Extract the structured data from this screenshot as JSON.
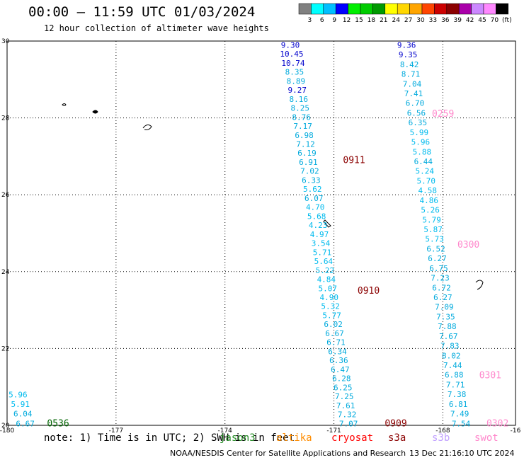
{
  "header": {
    "title": "00:00 – 11:59 UTC 01/03/2024",
    "subtitle": "12 hour collection of altimeter wave heights"
  },
  "legend_scale": {
    "colors": [
      "#808080",
      "#00ffff",
      "#00bfff",
      "#0000ff",
      "#00ee00",
      "#00cc00",
      "#009900",
      "#ffff00",
      "#ffd700",
      "#ffa500",
      "#ff4500",
      "#cc0000",
      "#8b0000",
      "#aa00aa",
      "#cc88ff",
      "#ff88ff",
      "#000000"
    ],
    "labels": [
      "3",
      "6",
      "9",
      "12",
      "15",
      "18",
      "21",
      "24",
      "27",
      "30",
      "33",
      "36",
      "39",
      "42",
      "45",
      "70",
      "(ft)"
    ]
  },
  "footer": {
    "note_prefix": "note: 1) Time is in UTC; 2) SWH is in feet",
    "missions": [
      {
        "name": "jason3",
        "color": "#228b22"
      },
      {
        "name": "altika",
        "color": "#ff8c00"
      },
      {
        "name": "cryosat",
        "color": "#ff0000"
      },
      {
        "name": "s3a",
        "color": "#8b0000"
      },
      {
        "name": "s3b",
        "color": "#c0a0ff"
      },
      {
        "name": "swot",
        "color": "#ff88cc"
      }
    ],
    "credit": "NOAA/NESDIS Center for Satellite Applications and Research",
    "generated": "13 Dec 21:16:10 UTC 2024"
  },
  "chart_data": {
    "type": "scatter",
    "xlim": [
      -180,
      -166
    ],
    "ylim": [
      20,
      30
    ],
    "x_ticks": [
      "-180",
      "-177",
      "-174",
      "-171",
      "-168",
      "-16"
    ],
    "y_ticks": [
      "30",
      "28",
      "26",
      "24",
      "22",
      "20"
    ],
    "grid": true,
    "tracks": [
      {
        "name": "s3a-west",
        "time_label": "0911",
        "time_label_color": "#8b0000",
        "values": [
          "9.30",
          "10.45",
          "10.74",
          "8.35",
          "8.89",
          "9.27",
          "8.16",
          "8.25",
          "8.76",
          "7.17",
          "6.98",
          "7.12",
          "6.19",
          "6.91",
          "7.02",
          "6.33",
          "5.62",
          "6.07",
          "4.70",
          "5.68",
          "4.23",
          "4.97",
          "3.54",
          "5.71",
          "5.64",
          "5.22",
          "4.84",
          "5.07",
          "4.90",
          "5.32",
          "5.77",
          "6.02",
          "6.67",
          "6.71",
          "6.34",
          "6.36",
          "6.47",
          "6.28",
          "6.25",
          "7.25",
          "7.61",
          "7.32",
          "7.07"
        ],
        "lon_start": -172.2,
        "lat_start": 29.9,
        "lon_end": -170.6,
        "lat_end": 20.05
      },
      {
        "name": "s3a-east",
        "values": [
          "9.36",
          "9.35",
          "8.42",
          "8.71",
          "7.04",
          "7.41",
          "6.70",
          "6.56",
          "6.35",
          "5.99",
          "5.96",
          "5.88",
          "6.44",
          "5.24",
          "5.70",
          "4.58",
          "4.86",
          "5.26",
          "5.79",
          "5.87",
          "5.73",
          "6.52",
          "6.27",
          "6.75",
          "7.23",
          "6.72",
          "6.27",
          "7.09",
          "7.35",
          "7.88",
          "7.67",
          "7.83",
          "8.02",
          "7.44",
          "6.88",
          "7.71",
          "7.38",
          "6.81",
          "7.49",
          "7.54"
        ],
        "lon_start": -169.0,
        "lat_start": 29.9,
        "lon_end": -167.5,
        "lat_end": 20.05
      },
      {
        "name": "jason3-sw",
        "values": [
          "5.96",
          "5.91",
          "6.04",
          "6.67"
        ],
        "lon_start": -179.7,
        "lat_start": 20.8,
        "lon_end": -179.5,
        "lat_end": 20.05
      }
    ],
    "time_labels": [
      {
        "text": "0259",
        "color": "#ff88cc",
        "lon": -168.3,
        "lat": 28.1
      },
      {
        "text": "0911",
        "color": "#8b0000",
        "lon": -170.75,
        "lat": 26.9
      },
      {
        "text": "0300",
        "color": "#ff88cc",
        "lon": -167.6,
        "lat": 24.7
      },
      {
        "text": "0910",
        "color": "#8b0000",
        "lon": -170.35,
        "lat": 23.5
      },
      {
        "text": "0301",
        "color": "#ff88cc",
        "lon": -167.0,
        "lat": 21.3
      },
      {
        "text": "0909",
        "color": "#8b0000",
        "lon": -169.6,
        "lat": 20.05
      },
      {
        "text": "0302",
        "color": "#ff88cc",
        "lon": -166.8,
        "lat": 20.05
      },
      {
        "text": "0536",
        "color": "#006400",
        "lon": -178.9,
        "lat": 20.05
      }
    ]
  }
}
